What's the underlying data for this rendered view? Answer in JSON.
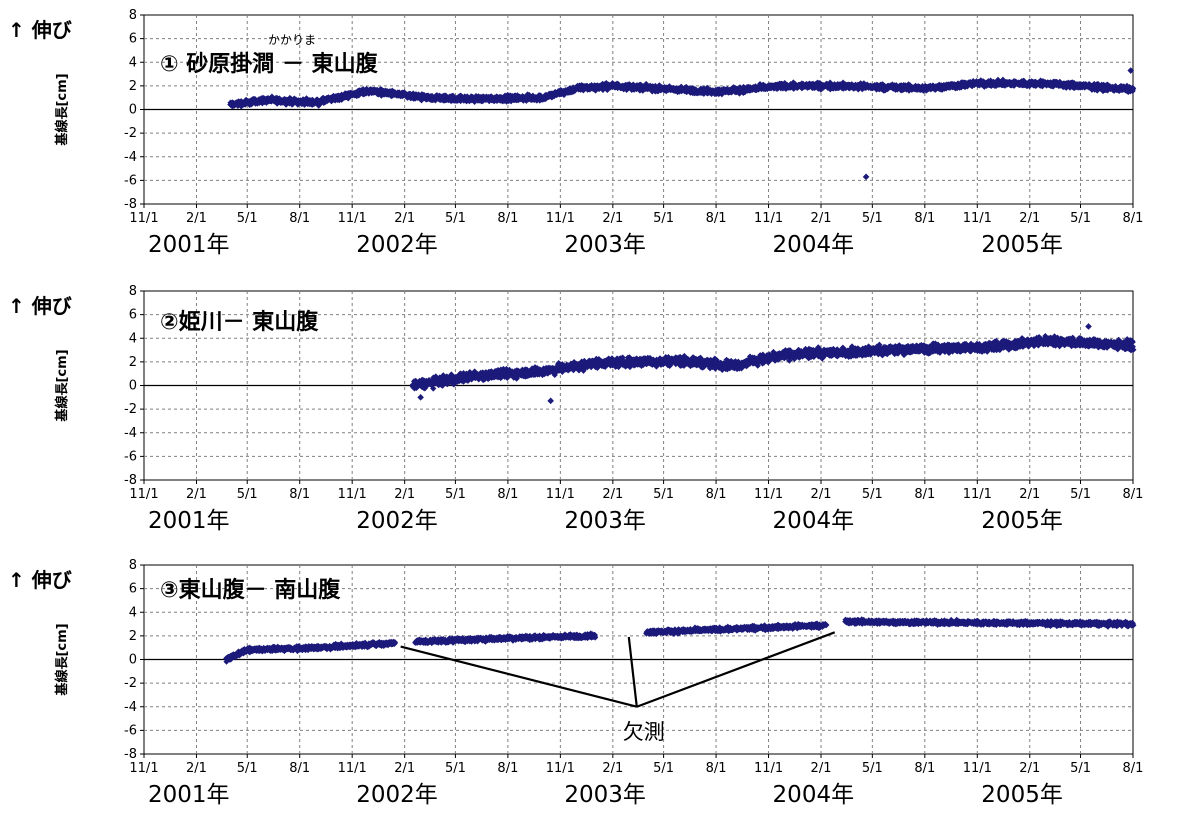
{
  "y_direction_label": "↑ 伸び",
  "ylabel": "基線長[cm]",
  "x_tick_labels": [
    "11/1",
    "2/1",
    "5/1",
    "8/1",
    "11/1",
    "2/1",
    "5/1",
    "8/1",
    "11/1",
    "2/1",
    "5/1",
    "8/1",
    "11/1",
    "2/1",
    "5/1",
    "8/1",
    "11/1",
    "2/1",
    "5/1",
    "8/1"
  ],
  "year_labels": [
    "2001年",
    "2002年",
    "2003年",
    "2004年",
    "2005年"
  ],
  "annotation_label": "欠測",
  "colors": {
    "marker": "#1c1a7a",
    "grid": "#808080",
    "zero_line": "#000000"
  },
  "chart_data": [
    {
      "type": "scatter",
      "title": "① 砂原掛澗 － 東山腹",
      "title_ruby": "かかりま",
      "ylabel": "基線長[cm]",
      "xlim": [
        "2000-11-01",
        "2005-08-01"
      ],
      "ylim": [
        -8,
        8
      ],
      "yticks": [
        8,
        6,
        4,
        2,
        0,
        -2,
        -4,
        -6,
        -8
      ],
      "grid": true,
      "trend": [
        {
          "date": "2001-04-01",
          "y": 0.4
        },
        {
          "date": "2001-06-01",
          "y": 0.8
        },
        {
          "date": "2001-09-01",
          "y": 0.6
        },
        {
          "date": "2001-12-01",
          "y": 1.6
        },
        {
          "date": "2002-03-01",
          "y": 1.0
        },
        {
          "date": "2002-06-01",
          "y": 0.9
        },
        {
          "date": "2002-10-01",
          "y": 1.0
        },
        {
          "date": "2002-12-01",
          "y": 1.8
        },
        {
          "date": "2003-02-01",
          "y": 2.0
        },
        {
          "date": "2003-08-01",
          "y": 1.5
        },
        {
          "date": "2003-12-01",
          "y": 2.0
        },
        {
          "date": "2004-03-01",
          "y": 2.0
        },
        {
          "date": "2004-08-01",
          "y": 1.8
        },
        {
          "date": "2004-11-01",
          "y": 2.2
        },
        {
          "date": "2005-03-01",
          "y": 2.2
        },
        {
          "date": "2005-08-01",
          "y": 1.7
        }
      ],
      "spread": 0.35,
      "outliers": [
        {
          "date": "2004-04-20",
          "y": -5.7
        },
        {
          "date": "2005-07-28",
          "y": 3.3
        }
      ],
      "gaps": []
    },
    {
      "type": "scatter",
      "title": "②姫川－ 東山腹",
      "ylabel": "基線長[cm]",
      "xlim": [
        "2000-11-01",
        "2005-08-01"
      ],
      "ylim": [
        -8,
        8
      ],
      "yticks": [
        8,
        6,
        4,
        2,
        0,
        -2,
        -4,
        -6,
        -8
      ],
      "grid": true,
      "trend": [
        {
          "date": "2002-02-15",
          "y": 0.0
        },
        {
          "date": "2002-06-01",
          "y": 0.8
        },
        {
          "date": "2002-10-01",
          "y": 1.2
        },
        {
          "date": "2003-01-01",
          "y": 1.9
        },
        {
          "date": "2003-06-01",
          "y": 2.1
        },
        {
          "date": "2003-09-01",
          "y": 1.7
        },
        {
          "date": "2003-12-01",
          "y": 2.6
        },
        {
          "date": "2004-06-01",
          "y": 3.0
        },
        {
          "date": "2004-12-01",
          "y": 3.3
        },
        {
          "date": "2005-03-01",
          "y": 3.8
        },
        {
          "date": "2005-08-01",
          "y": 3.4
        }
      ],
      "spread": 0.55,
      "outliers": [
        {
          "date": "2002-03-01",
          "y": -1.0
        },
        {
          "date": "2002-10-15",
          "y": -1.3
        },
        {
          "date": "2005-05-15",
          "y": 5.0
        }
      ],
      "gaps": []
    },
    {
      "type": "scatter",
      "title": "③東山腹－ 南山腹",
      "ylabel": "基線長[cm]",
      "xlim": [
        "2000-11-01",
        "2005-08-01"
      ],
      "ylim": [
        -8,
        8
      ],
      "yticks": [
        8,
        6,
        4,
        2,
        0,
        -2,
        -4,
        -6,
        -8
      ],
      "grid": true,
      "trend": [
        {
          "date": "2001-03-25",
          "y": 0.0
        },
        {
          "date": "2001-05-01",
          "y": 0.8
        },
        {
          "date": "2001-09-01",
          "y": 1.0
        },
        {
          "date": "2002-01-15",
          "y": 1.4
        },
        {
          "date": "2002-02-15",
          "y": 1.5
        },
        {
          "date": "2002-08-01",
          "y": 1.8
        },
        {
          "date": "2002-12-31",
          "y": 2.0
        },
        {
          "date": "2003-04-01",
          "y": 2.3
        },
        {
          "date": "2004-02-10",
          "y": 2.9
        },
        {
          "date": "2004-03-15",
          "y": 3.2
        },
        {
          "date": "2005-08-01",
          "y": 3.0
        }
      ],
      "spread": 0.25,
      "outliers": [],
      "gaps": [
        [
          "2002-01-15",
          "2002-02-20"
        ],
        [
          "2003-01-01",
          "2003-04-01"
        ],
        [
          "2004-02-10",
          "2004-03-15"
        ]
      ]
    }
  ]
}
